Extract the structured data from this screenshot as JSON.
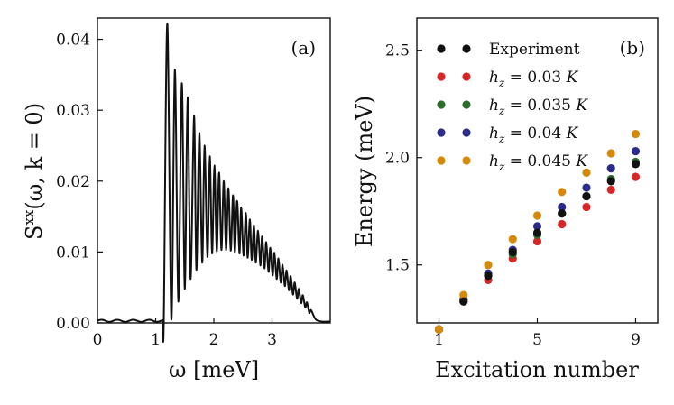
{
  "chart_data": [
    {
      "type": "line",
      "panel_label": "(a)",
      "xlabel": "ω [meV]",
      "ylabel": "S^xx(ω, k = 0)",
      "ylabel_parts": {
        "main": "S",
        "sup": "xx",
        "rest": "(ω, k = 0)"
      },
      "xlim": [
        0,
        4.0
      ],
      "ylim": [
        0,
        0.043
      ],
      "xticks": [
        0,
        1,
        2,
        3
      ],
      "xtick_labels": [
        "0",
        "1",
        "2",
        "3"
      ],
      "yticks": [
        0.0,
        0.01,
        0.02,
        0.03,
        0.04
      ],
      "ytick_labels": [
        "0.00",
        "0.01",
        "0.02",
        "0.03",
        "0.04"
      ],
      "series": [
        {
          "name": "S^xx",
          "color": "#111111",
          "baseline": 0.0003,
          "onset": 1.15,
          "end": 3.75,
          "peaks": [
            [
              1.2,
              0.0422
            ],
            [
              1.33,
              0.0357
            ],
            [
              1.45,
              0.0338
            ],
            [
              1.55,
              0.0318
            ],
            [
              1.66,
              0.0292
            ],
            [
              1.75,
              0.0268
            ],
            [
              1.84,
              0.025
            ],
            [
              1.93,
              0.0235
            ],
            [
              2.01,
              0.0222
            ],
            [
              2.09,
              0.0212
            ],
            [
              2.17,
              0.02
            ],
            [
              2.25,
              0.019
            ],
            [
              2.33,
              0.018
            ],
            [
              2.4,
              0.0172
            ],
            [
              2.47,
              0.0163
            ],
            [
              2.55,
              0.0155
            ],
            [
              2.62,
              0.0146
            ],
            [
              2.69,
              0.0138
            ],
            [
              2.76,
              0.013
            ],
            [
              2.83,
              0.0122
            ],
            [
              2.9,
              0.0114
            ],
            [
              2.97,
              0.0106
            ],
            [
              3.04,
              0.0099
            ],
            [
              3.11,
              0.0091
            ],
            [
              3.18,
              0.0082
            ],
            [
              3.25,
              0.0074
            ],
            [
              3.32,
              0.0066
            ],
            [
              3.39,
              0.0057
            ],
            [
              3.46,
              0.0048
            ],
            [
              3.53,
              0.0039
            ],
            [
              3.6,
              0.0029
            ],
            [
              3.67,
              0.0018
            ]
          ],
          "valleys": [
            [
              1.27,
              0.0005
            ],
            [
              1.39,
              0.003
            ],
            [
              1.5,
              0.0048
            ],
            [
              1.6,
              0.0062
            ],
            [
              1.7,
              0.0075
            ],
            [
              1.8,
              0.0085
            ],
            [
              1.89,
              0.0093
            ],
            [
              1.97,
              0.0098
            ],
            [
              2.05,
              0.0101
            ],
            [
              2.13,
              0.0103
            ],
            [
              2.21,
              0.0103
            ],
            [
              2.29,
              0.0102
            ],
            [
              2.36,
              0.01
            ],
            [
              2.44,
              0.0098
            ],
            [
              2.51,
              0.0095
            ],
            [
              2.58,
              0.0092
            ],
            [
              2.65,
              0.0089
            ],
            [
              2.72,
              0.0085
            ],
            [
              2.8,
              0.0081
            ],
            [
              2.87,
              0.0077
            ],
            [
              2.94,
              0.0072
            ],
            [
              3.01,
              0.0067
            ],
            [
              3.08,
              0.0062
            ],
            [
              3.15,
              0.0057
            ],
            [
              3.22,
              0.0052
            ],
            [
              3.29,
              0.0046
            ],
            [
              3.36,
              0.004
            ],
            [
              3.43,
              0.0034
            ],
            [
              3.5,
              0.0028
            ],
            [
              3.57,
              0.0022
            ],
            [
              3.64,
              0.0014
            ]
          ]
        }
      ]
    },
    {
      "type": "scatter",
      "panel_label": "(b)",
      "xlabel": "Excitation number",
      "ylabel": "Energy (meV)",
      "xlim": [
        0.1,
        9.9
      ],
      "ylim": [
        1.23,
        2.65
      ],
      "xticks": [
        1,
        5,
        9
      ],
      "xtick_labels": [
        "1",
        "5",
        "9"
      ],
      "yticks": [
        1.5,
        2.0,
        2.5
      ],
      "ytick_labels": [
        "1.5",
        "2.0",
        "2.5"
      ],
      "legend_position": "top-left",
      "x": [
        1,
        2,
        3,
        4,
        5,
        6,
        7,
        8,
        9
      ],
      "series": [
        {
          "name": "Experiment",
          "label_parts": {
            "text": "Experiment"
          },
          "color": "#111111",
          "values": [
            null,
            1.33,
            1.45,
            1.56,
            1.65,
            1.74,
            1.82,
            1.89,
            1.97
          ]
        },
        {
          "name": "h_z = 0.03 K",
          "label_parts": {
            "h": "h",
            "sub": "z",
            "eq": " = 0.03 ",
            "unit": "K"
          },
          "color": "#d62728",
          "values": [
            1.2,
            1.33,
            1.43,
            1.53,
            1.61,
            1.69,
            1.77,
            1.85,
            1.91
          ]
        },
        {
          "name": "h_z = 0.035 K",
          "label_parts": {
            "h": "h",
            "sub": "z",
            "eq": " = 0.035 ",
            "unit": "K"
          },
          "color": "#2f6b2f",
          "values": [
            1.2,
            1.34,
            1.45,
            1.55,
            1.64,
            1.74,
            1.82,
            1.9,
            1.98
          ]
        },
        {
          "name": "h_z = 0.04 K",
          "label_parts": {
            "h": "h",
            "sub": "z",
            "eq": " = 0.04 ",
            "unit": "K"
          },
          "color": "#2b2b8c",
          "values": [
            1.2,
            1.34,
            1.46,
            1.57,
            1.68,
            1.77,
            1.86,
            1.95,
            2.03
          ]
        },
        {
          "name": "h_z = 0.045 K",
          "label_parts": {
            "h": "h",
            "sub": "z",
            "eq": " = 0.045 ",
            "unit": "K"
          },
          "color": "#d4890a",
          "values": [
            1.2,
            1.36,
            1.5,
            1.62,
            1.73,
            1.84,
            1.93,
            2.02,
            2.11
          ]
        }
      ]
    }
  ]
}
